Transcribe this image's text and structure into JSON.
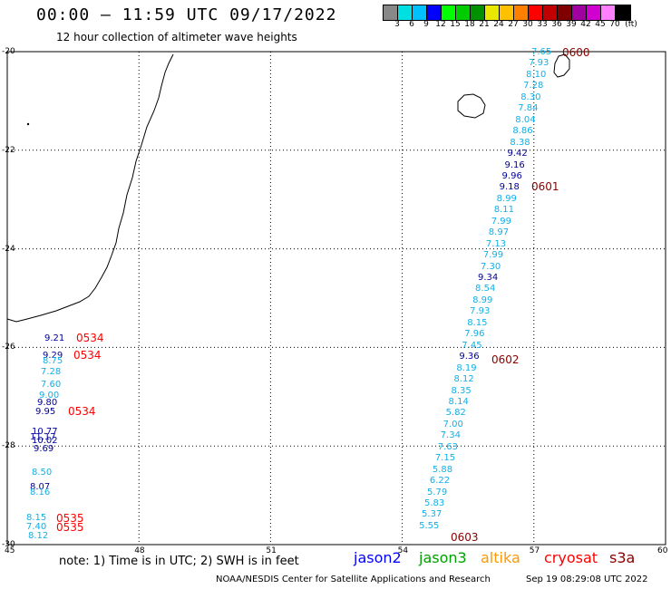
{
  "header": {
    "title": "00:00 – 11:59 UTC 09/17/2022",
    "subtitle": "12 hour collection of altimeter wave heights"
  },
  "scale": {
    "colors": [
      "#888888",
      "#00e0e0",
      "#00c0ff",
      "#0000ff",
      "#00ff00",
      "#00cc00",
      "#009000",
      "#e8e800",
      "#ffc000",
      "#ff8000",
      "#ff0000",
      "#c00000",
      "#800000",
      "#a000a0",
      "#d000d0",
      "#ff80ff",
      "#000000"
    ],
    "labels": [
      "3",
      "6",
      "9",
      "12",
      "15",
      "18",
      "21",
      "24",
      "27",
      "30",
      "33",
      "36",
      "39",
      "42",
      "45",
      "70",
      "(ft)"
    ]
  },
  "map": {
    "lon_ticks": [
      "45",
      "48",
      "51",
      "54",
      "57",
      "60"
    ],
    "lat_ticks": [
      "-20",
      "-22",
      "-24",
      "-26",
      "-28",
      "-30"
    ],
    "colors": {
      "light": "#11b0e8",
      "dark": "#000099",
      "red": "#ff0000",
      "maroon": "#880000"
    },
    "track_east": [
      {
        "v": "7.65",
        "c": "light"
      },
      {
        "v": "7.93",
        "c": "light"
      },
      {
        "v": "8.10",
        "c": "light"
      },
      {
        "v": "7.28",
        "c": "light"
      },
      {
        "v": "8.30",
        "c": "light"
      },
      {
        "v": "7.84",
        "c": "light"
      },
      {
        "v": "8.04",
        "c": "light"
      },
      {
        "v": "8.86",
        "c": "light"
      },
      {
        "v": "8.38",
        "c": "light"
      },
      {
        "v": "9.42",
        "c": "dark"
      },
      {
        "v": "9.16",
        "c": "dark"
      },
      {
        "v": "9.96",
        "c": "dark"
      },
      {
        "v": "9.18",
        "c": "dark"
      },
      {
        "v": "8.99",
        "c": "light"
      },
      {
        "v": "8.11",
        "c": "light"
      },
      {
        "v": "7.99",
        "c": "light"
      },
      {
        "v": "8.97",
        "c": "light"
      },
      {
        "v": "7.13",
        "c": "light"
      },
      {
        "v": "7.99",
        "c": "light"
      },
      {
        "v": "7.30",
        "c": "light"
      },
      {
        "v": "9.34",
        "c": "dark"
      },
      {
        "v": "8.54",
        "c": "light"
      },
      {
        "v": "8.99",
        "c": "light"
      },
      {
        "v": "7.93",
        "c": "light"
      },
      {
        "v": "8.15",
        "c": "light"
      },
      {
        "v": "7.96",
        "c": "light"
      },
      {
        "v": "7.45",
        "c": "light"
      },
      {
        "v": "9.36",
        "c": "dark"
      },
      {
        "v": "8.19",
        "c": "light"
      },
      {
        "v": "8.12",
        "c": "light"
      },
      {
        "v": "8.35",
        "c": "light"
      },
      {
        "v": "8.14",
        "c": "light"
      },
      {
        "v": "5.82",
        "c": "light"
      },
      {
        "v": "7.00",
        "c": "light"
      },
      {
        "v": "7.34",
        "c": "light"
      },
      {
        "v": "7.63",
        "c": "light"
      },
      {
        "v": "7.15",
        "c": "light"
      },
      {
        "v": "5.88",
        "c": "light"
      },
      {
        "v": "6.22",
        "c": "light"
      },
      {
        "v": "5.79",
        "c": "light"
      },
      {
        "v": "5.83",
        "c": "light"
      },
      {
        "v": "5.37",
        "c": "light"
      },
      {
        "v": "5.55",
        "c": "light"
      }
    ],
    "track_west": [
      {
        "v": "9.21",
        "c": "dark"
      },
      {
        "v": "9.29",
        "c": "dark"
      },
      {
        "v": "8.75",
        "c": "light"
      },
      {
        "v": "7.28",
        "c": "light"
      },
      {
        "v": "7.60",
        "c": "light"
      },
      {
        "v": "9.00",
        "c": "light"
      },
      {
        "v": "9.80",
        "c": "dark"
      },
      {
        "v": "9.95",
        "c": "dark"
      },
      {
        "v": "10.77",
        "c": "dark"
      },
      {
        "v": "11.17",
        "c": "dark"
      },
      {
        "v": "10.02",
        "c": "dark"
      },
      {
        "v": "9.69",
        "c": "dark"
      },
      {
        "v": "8.50",
        "c": "light"
      },
      {
        "v": "8.07",
        "c": "dark"
      },
      {
        "v": "8.16",
        "c": "light"
      },
      {
        "v": "8.15",
        "c": "light"
      },
      {
        "v": "7.40",
        "c": "light"
      },
      {
        "v": "8.12",
        "c": "light"
      }
    ],
    "times": [
      {
        "t": "0600",
        "c": "maroon"
      },
      {
        "t": "0601",
        "c": "maroon"
      },
      {
        "t": "0602",
        "c": "maroon"
      },
      {
        "t": "0603",
        "c": "maroon"
      },
      {
        "t": "0534",
        "c": "red"
      },
      {
        "t": "0534",
        "c": "red"
      },
      {
        "t": "0534",
        "c": "red"
      },
      {
        "t": "0535",
        "c": "red"
      },
      {
        "t": "0535",
        "c": "red"
      }
    ]
  },
  "footer": {
    "note": "note: 1) Time is in UTC; 2) SWH is in feet",
    "satellites": [
      {
        "name": "jason2",
        "color": "#0000ff"
      },
      {
        "name": "jason3",
        "color": "#00a000"
      },
      {
        "name": "altika",
        "color": "#ff9900"
      },
      {
        "name": "cryosat",
        "color": "#ff0000"
      },
      {
        "name": "s3a",
        "color": "#880000"
      }
    ],
    "credit": "NOAA/NESDIS Center for Satellite Applications and Research",
    "timestamp": "Sep 19 08:29:08 UTC 2022"
  }
}
